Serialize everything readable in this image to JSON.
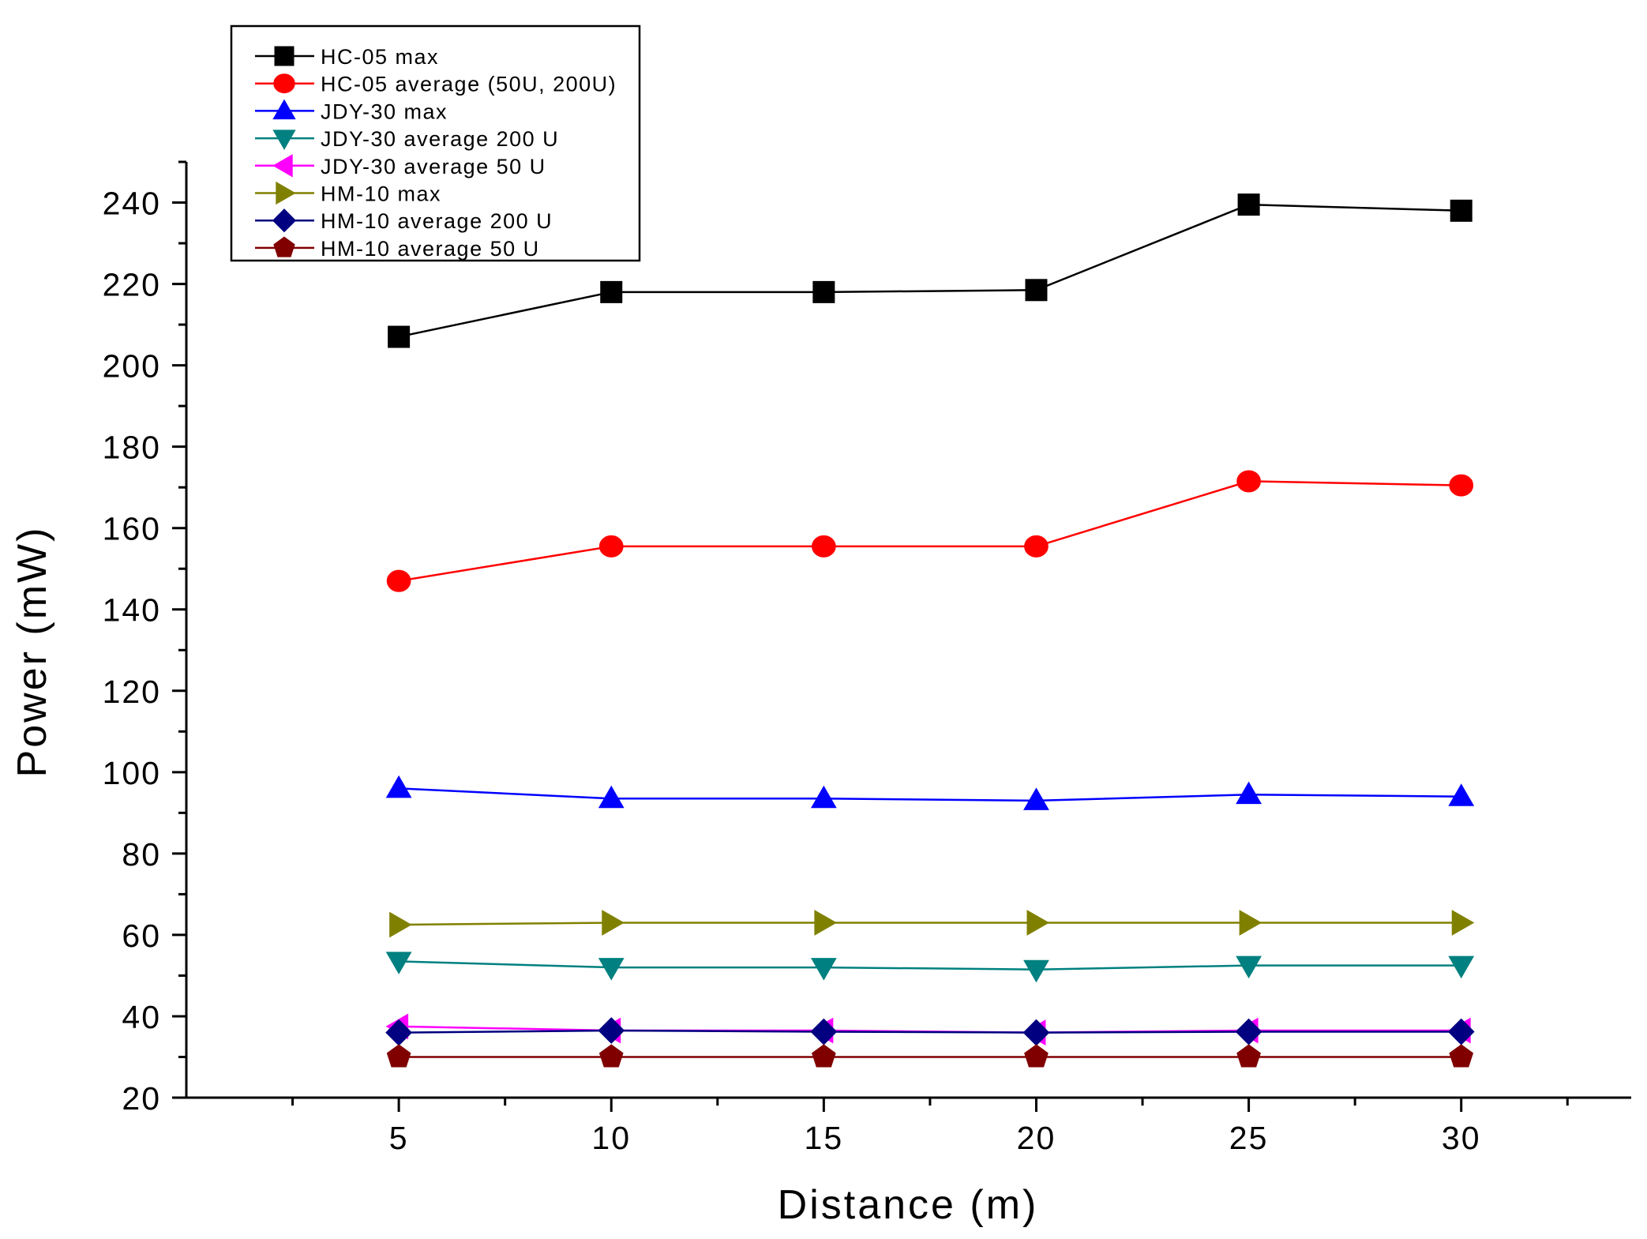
{
  "chart_data": {
    "type": "line",
    "title": "",
    "xlabel": "Distance (m)",
    "ylabel": "Power (mW)",
    "xlim": [
      0,
      34
    ],
    "ylim": [
      20,
      250
    ],
    "xticks": [
      5,
      10,
      15,
      20,
      25,
      30
    ],
    "yticks": [
      20,
      40,
      60,
      80,
      100,
      120,
      140,
      160,
      180,
      200,
      220,
      240
    ],
    "x": [
      5,
      10,
      15,
      20,
      25,
      30
    ],
    "legend_position": "top-left",
    "series": [
      {
        "name": "HC-05 max",
        "color": "#000000",
        "marker": "square",
        "values": [
          207,
          218,
          218,
          218.5,
          239.5,
          238
        ]
      },
      {
        "name": "HC-05 average (50U, 200U)",
        "color": "#ff0000",
        "marker": "circle",
        "values": [
          147,
          155.5,
          155.5,
          155.5,
          171.5,
          170.5
        ]
      },
      {
        "name": "JDY-30 max",
        "color": "#0000ff",
        "marker": "triangle-up",
        "values": [
          96,
          93.5,
          93.5,
          93,
          94.5,
          94
        ]
      },
      {
        "name": "JDY-30 average 200 U",
        "color": "#008080",
        "marker": "triangle-down",
        "values": [
          53.5,
          52,
          52,
          51.5,
          52.5,
          52.5
        ]
      },
      {
        "name": "JDY-30 average 50 U",
        "color": "#ff00ff",
        "marker": "triangle-left",
        "values": [
          37.5,
          36.5,
          36.5,
          36,
          36.5,
          36.5
        ]
      },
      {
        "name": "HM-10 max",
        "color": "#808000",
        "marker": "triangle-right",
        "values": [
          62.5,
          63,
          63,
          63,
          63,
          63
        ]
      },
      {
        "name": "HM-10 average 200 U",
        "color": "#000080",
        "marker": "diamond",
        "values": [
          36,
          36.5,
          36.2,
          36,
          36.2,
          36.2
        ]
      },
      {
        "name": "HM-10 average 50 U",
        "color": "#800000",
        "marker": "pentagon",
        "values": [
          30,
          30,
          30,
          30,
          30,
          30
        ]
      }
    ]
  }
}
